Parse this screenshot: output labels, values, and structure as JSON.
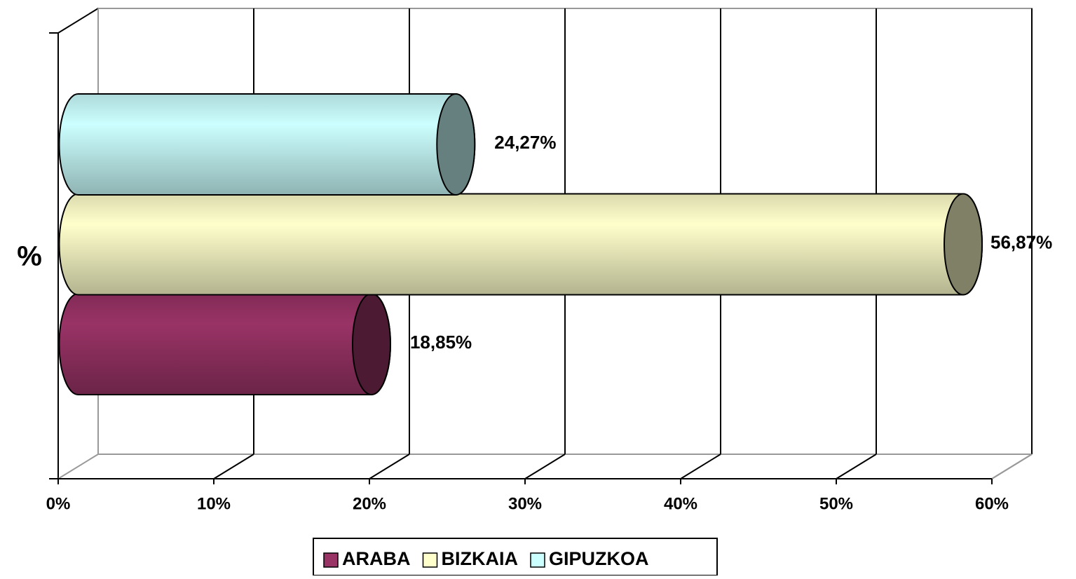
{
  "chart_data": {
    "type": "bar3d-horizontal-cylinder",
    "categories": [
      "%"
    ],
    "series": [
      {
        "name": "ARABA",
        "color": "#993366",
        "values": [
          18.85
        ],
        "value_labels": [
          "18,85%"
        ]
      },
      {
        "name": "BIZKAIA",
        "color": "#ffffcc",
        "values": [
          56.87
        ],
        "value_labels": [
          "56,87%"
        ]
      },
      {
        "name": "GIPUZKOA",
        "color": "#ccffff",
        "values": [
          24.27
        ],
        "value_labels": [
          "24,27%"
        ]
      }
    ],
    "xlim": [
      0,
      60
    ],
    "xticks": [
      {
        "value": 0,
        "label": "0%"
      },
      {
        "value": 10,
        "label": "10%"
      },
      {
        "value": 20,
        "label": "20%"
      },
      {
        "value": 30,
        "label": "30%"
      },
      {
        "value": 40,
        "label": "40%"
      },
      {
        "value": 50,
        "label": "50%"
      },
      {
        "value": 60,
        "label": "60%"
      }
    ],
    "grid": true,
    "legend": "bottom"
  }
}
